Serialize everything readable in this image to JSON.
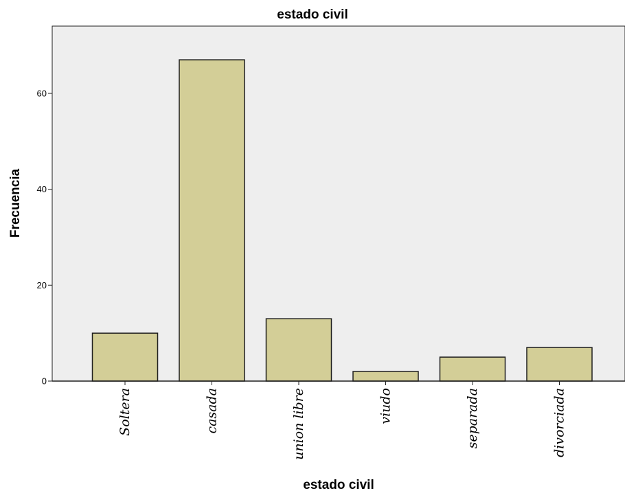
{
  "chart_data": {
    "type": "bar",
    "title": "estado civil",
    "xlabel": "estado civil",
    "ylabel": "Frecuencia",
    "categories": [
      "Soltera",
      "casada",
      "union libre",
      "viudo",
      "separada",
      "divorciada"
    ],
    "values": [
      10,
      67,
      13,
      2,
      5,
      7
    ],
    "ylim": [
      0,
      75
    ],
    "yticks": [
      0,
      20,
      40,
      60
    ],
    "grid": false,
    "colors": {
      "plot_background": "#eeeeee",
      "bar_fill": "#d3ce97",
      "bar_stroke": "#1e1e1e",
      "axis": "#1e1e1e"
    }
  }
}
